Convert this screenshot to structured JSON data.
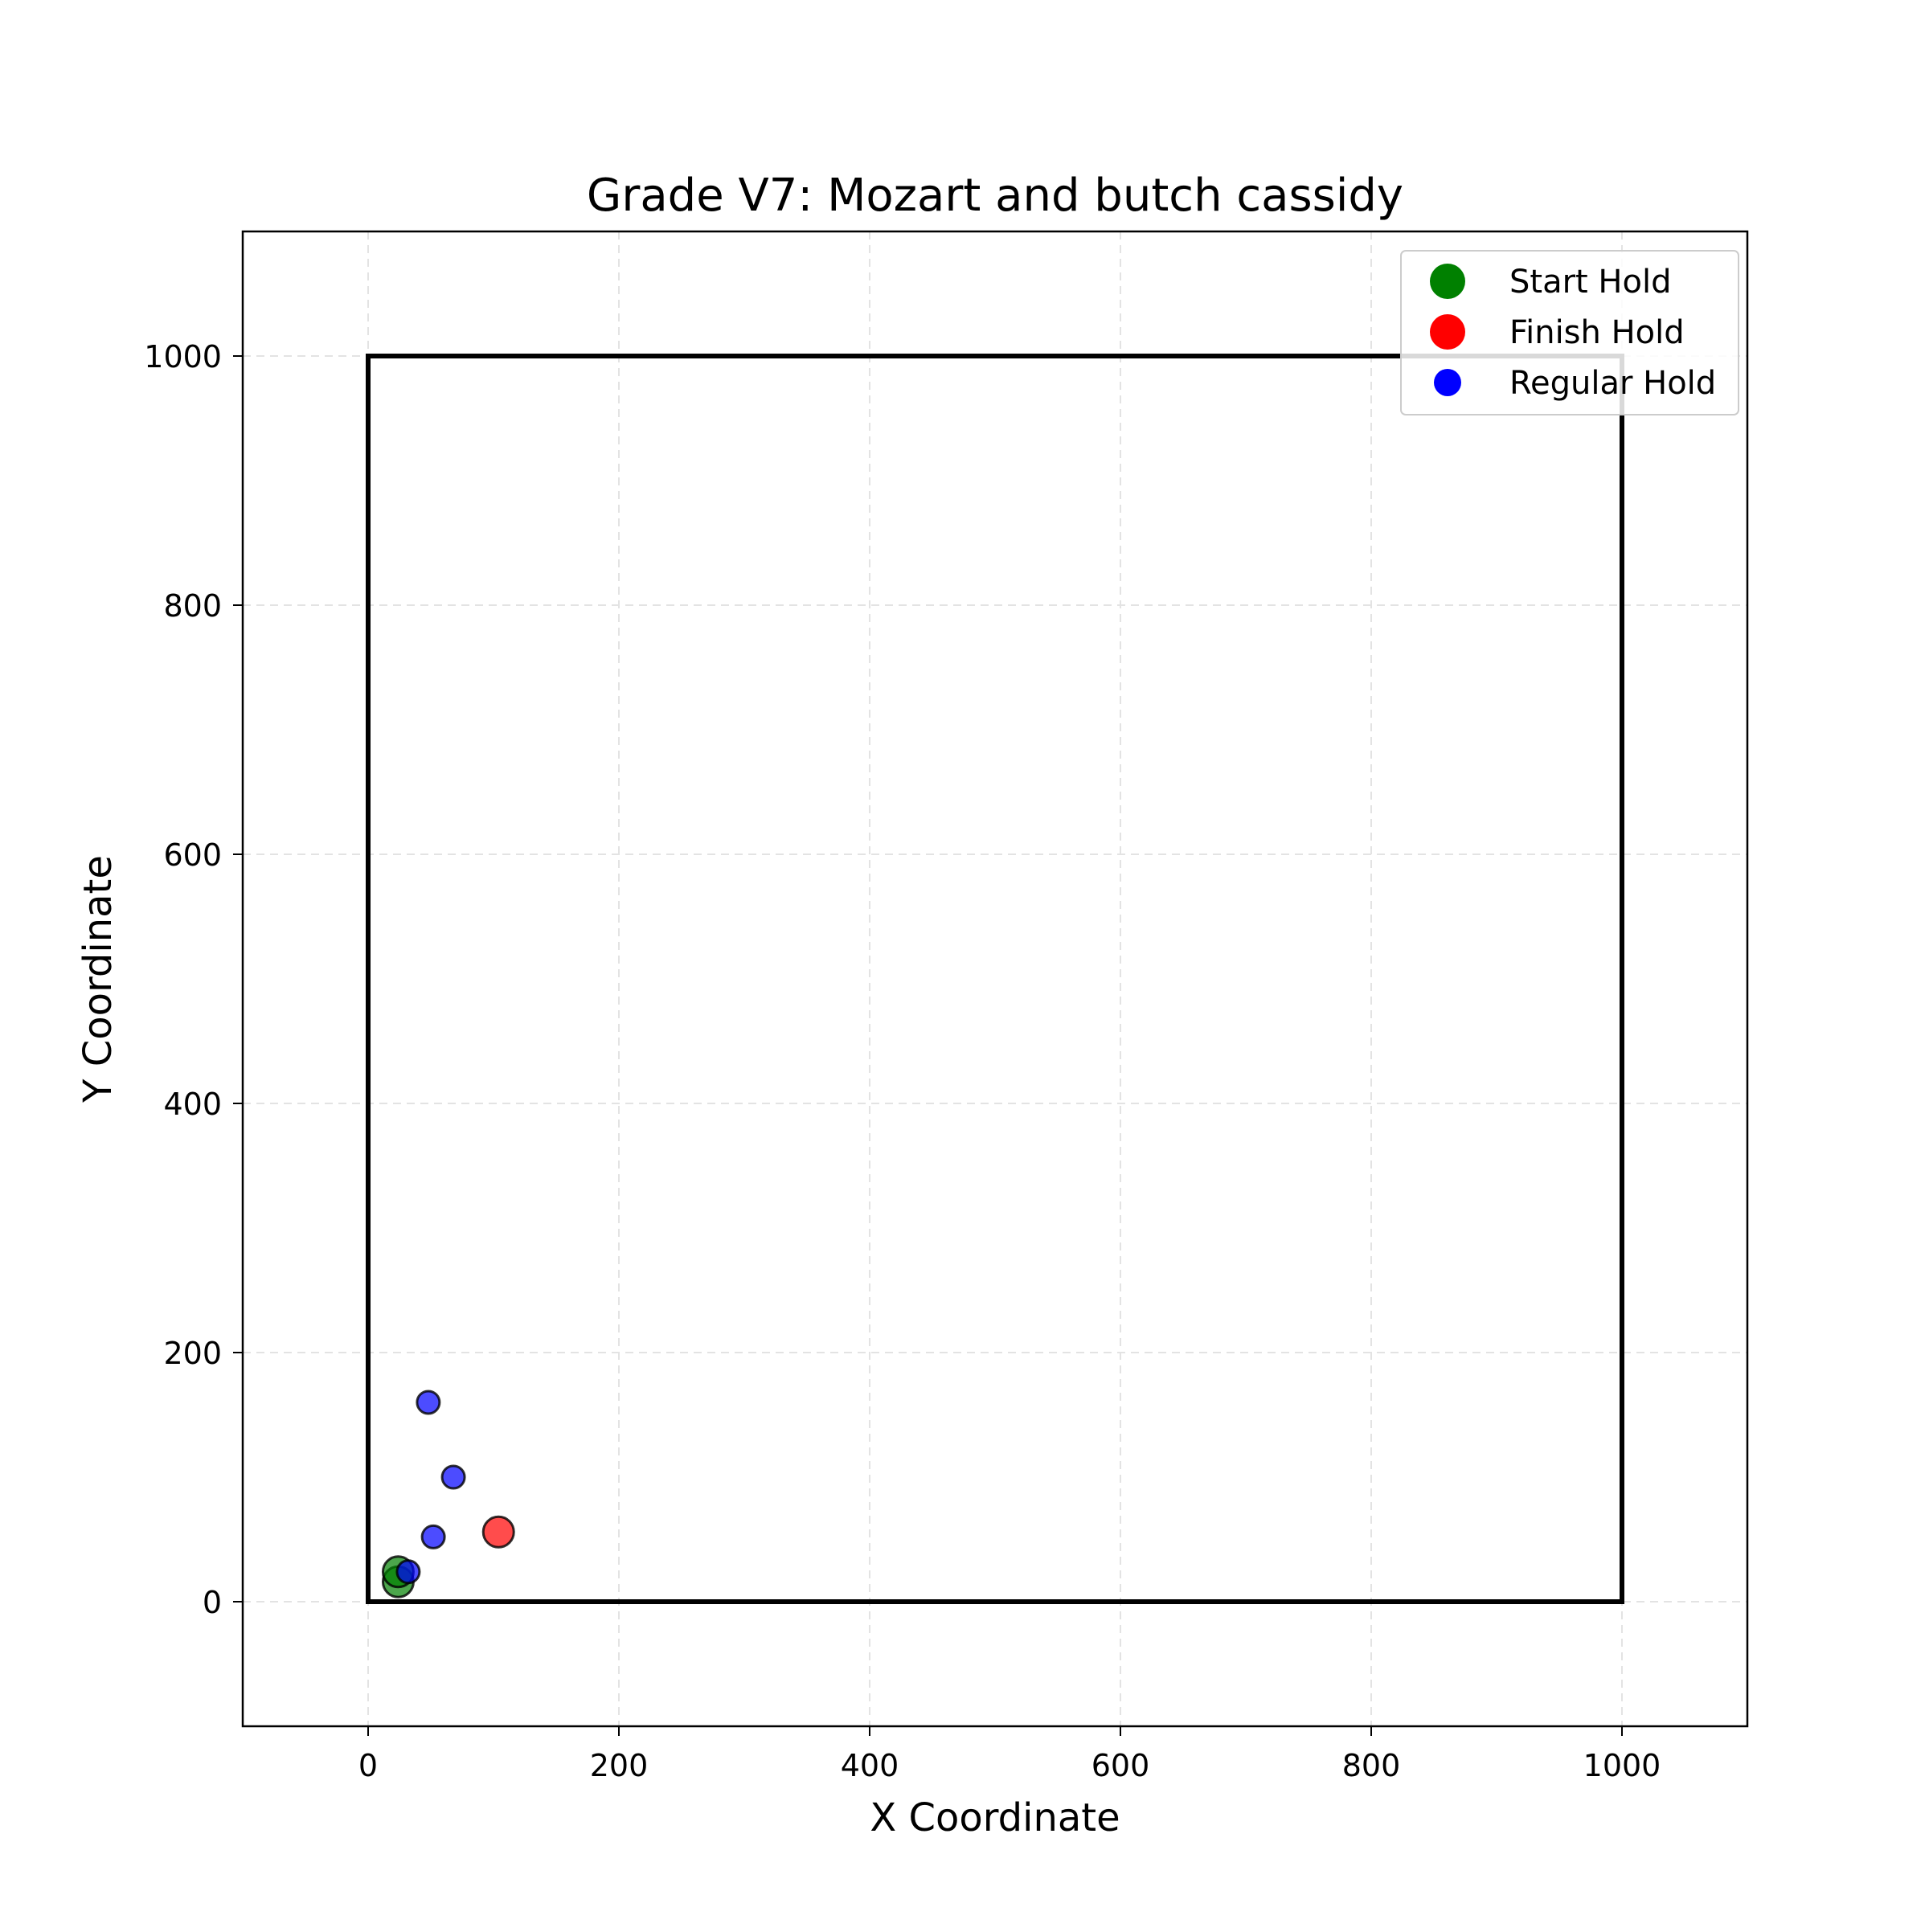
{
  "chart_data": {
    "type": "scatter",
    "title": "Grade V7: Mozart and butch cassidy",
    "xlabel": "X Coordinate",
    "ylabel": "Y Coordinate",
    "xlim": [
      -100,
      1100
    ],
    "ylim": [
      -100,
      1100
    ],
    "xticks": [
      0,
      200,
      400,
      600,
      800,
      1000
    ],
    "yticks": [
      0,
      200,
      400,
      600,
      800,
      1000
    ],
    "grid": true,
    "grid_style": "dashed",
    "legend_position": "top-right",
    "board_outline": {
      "x": [
        0,
        1000
      ],
      "y": [
        0,
        1000
      ],
      "color": "#000000"
    },
    "series": [
      {
        "name": "Start Hold",
        "color": "#008000",
        "marker_size": "large",
        "points": [
          {
            "x": 24,
            "y": 16
          },
          {
            "x": 24,
            "y": 24
          }
        ]
      },
      {
        "name": "Finish Hold",
        "color": "#ff0000",
        "marker_size": "large",
        "points": [
          {
            "x": 104,
            "y": 56
          }
        ]
      },
      {
        "name": "Regular Hold",
        "color": "#0000ff",
        "marker_size": "small",
        "points": [
          {
            "x": 48,
            "y": 160
          },
          {
            "x": 68,
            "y": 100
          },
          {
            "x": 52,
            "y": 52
          },
          {
            "x": 32,
            "y": 24
          }
        ]
      }
    ]
  }
}
